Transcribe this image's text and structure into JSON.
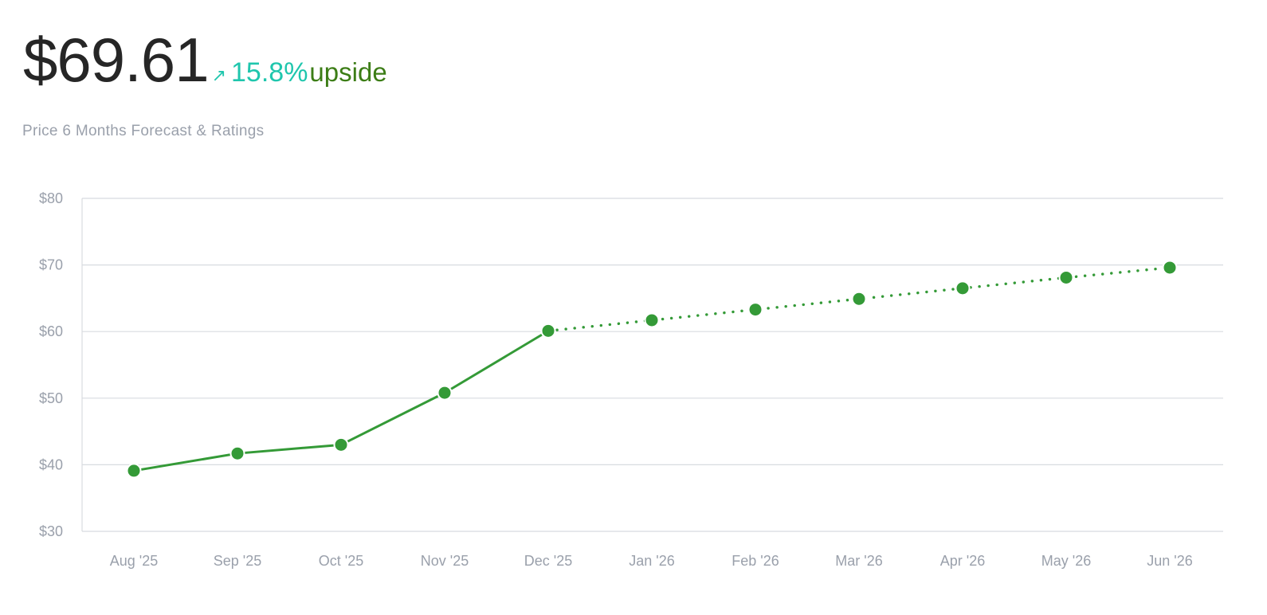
{
  "header": {
    "price": "$69.61",
    "arrow_icon": "arrow-up-right-icon",
    "arrow_glyph": "↗",
    "change_pct": "15.8%",
    "change_label": "upside",
    "subtitle": "Price 6 Months Forecast & Ratings"
  },
  "colors": {
    "price_text": "#262626",
    "change_accent": "#1fc6ad",
    "upside_text": "#3c7d16",
    "series": "#349a37",
    "grid": "#d8dbe0",
    "axis_text": "#9aa0ab"
  },
  "chart_data": {
    "type": "line",
    "title": "",
    "xlabel": "",
    "ylabel": "",
    "ylim": [
      30,
      80
    ],
    "y_ticks": [
      80,
      70,
      60,
      50,
      40,
      30
    ],
    "y_tick_labels": [
      "$80",
      "$70",
      "$60",
      "$50",
      "$40",
      "$30"
    ],
    "grid": true,
    "categories": [
      "Aug '25",
      "Sep '25",
      "Oct '25",
      "Nov '25",
      "Dec '25",
      "Jan '26",
      "Feb '26",
      "Mar '26",
      "Apr '26",
      "May '26",
      "Jun '26"
    ],
    "series": [
      {
        "style": "solid",
        "values": [
          39.1,
          41.7,
          43.0,
          50.8,
          60.1,
          null,
          null,
          null,
          null,
          null,
          null
        ]
      },
      {
        "style": "dotted",
        "values": [
          null,
          null,
          null,
          null,
          60.1,
          61.7,
          63.3,
          64.9,
          66.5,
          68.1,
          69.6
        ]
      }
    ]
  }
}
